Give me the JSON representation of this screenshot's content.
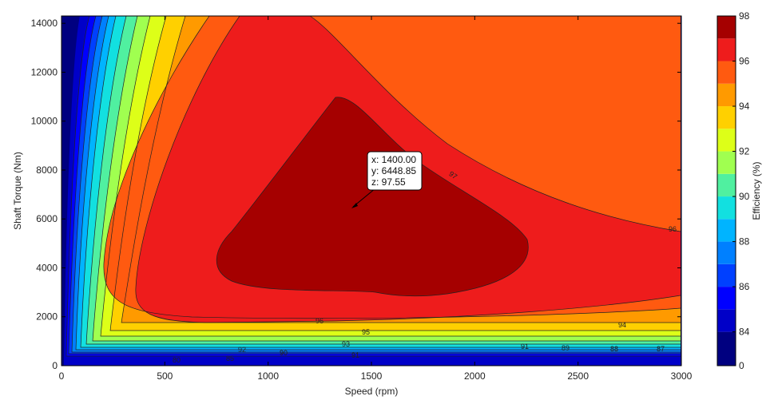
{
  "chart_data": {
    "type": "contour",
    "xlabel": "Speed  (rpm)",
    "ylabel": "Shaft Torque  (Nm)",
    "xlim": [
      0,
      3000
    ],
    "ylim": [
      0,
      14300
    ],
    "xticks": [
      "0",
      "500",
      "1000",
      "1500",
      "2000",
      "2500",
      "3000"
    ],
    "yticks": [
      "0",
      "2000",
      "4000",
      "6000",
      "8000",
      "10000",
      "12000",
      "14000"
    ],
    "colorbar": {
      "label": "Efficiency (%)",
      "min": 82.5,
      "max": 98,
      "ticks": [
        "84",
        "86",
        "88",
        "90",
        "92",
        "94",
        "96",
        "98"
      ]
    },
    "contour_labels": [
      "80",
      "85",
      "90",
      "91",
      "92",
      "93",
      "95",
      "96",
      "96",
      "97",
      "94",
      "91",
      "89",
      "88",
      "87"
    ],
    "datatip": {
      "x_text": "x: 1400.00",
      "y_text": "y: 6448.85",
      "z_text": "z: 97.55",
      "x": 1400.0,
      "y": 6448.85,
      "z": 97.55
    },
    "grid": false
  }
}
